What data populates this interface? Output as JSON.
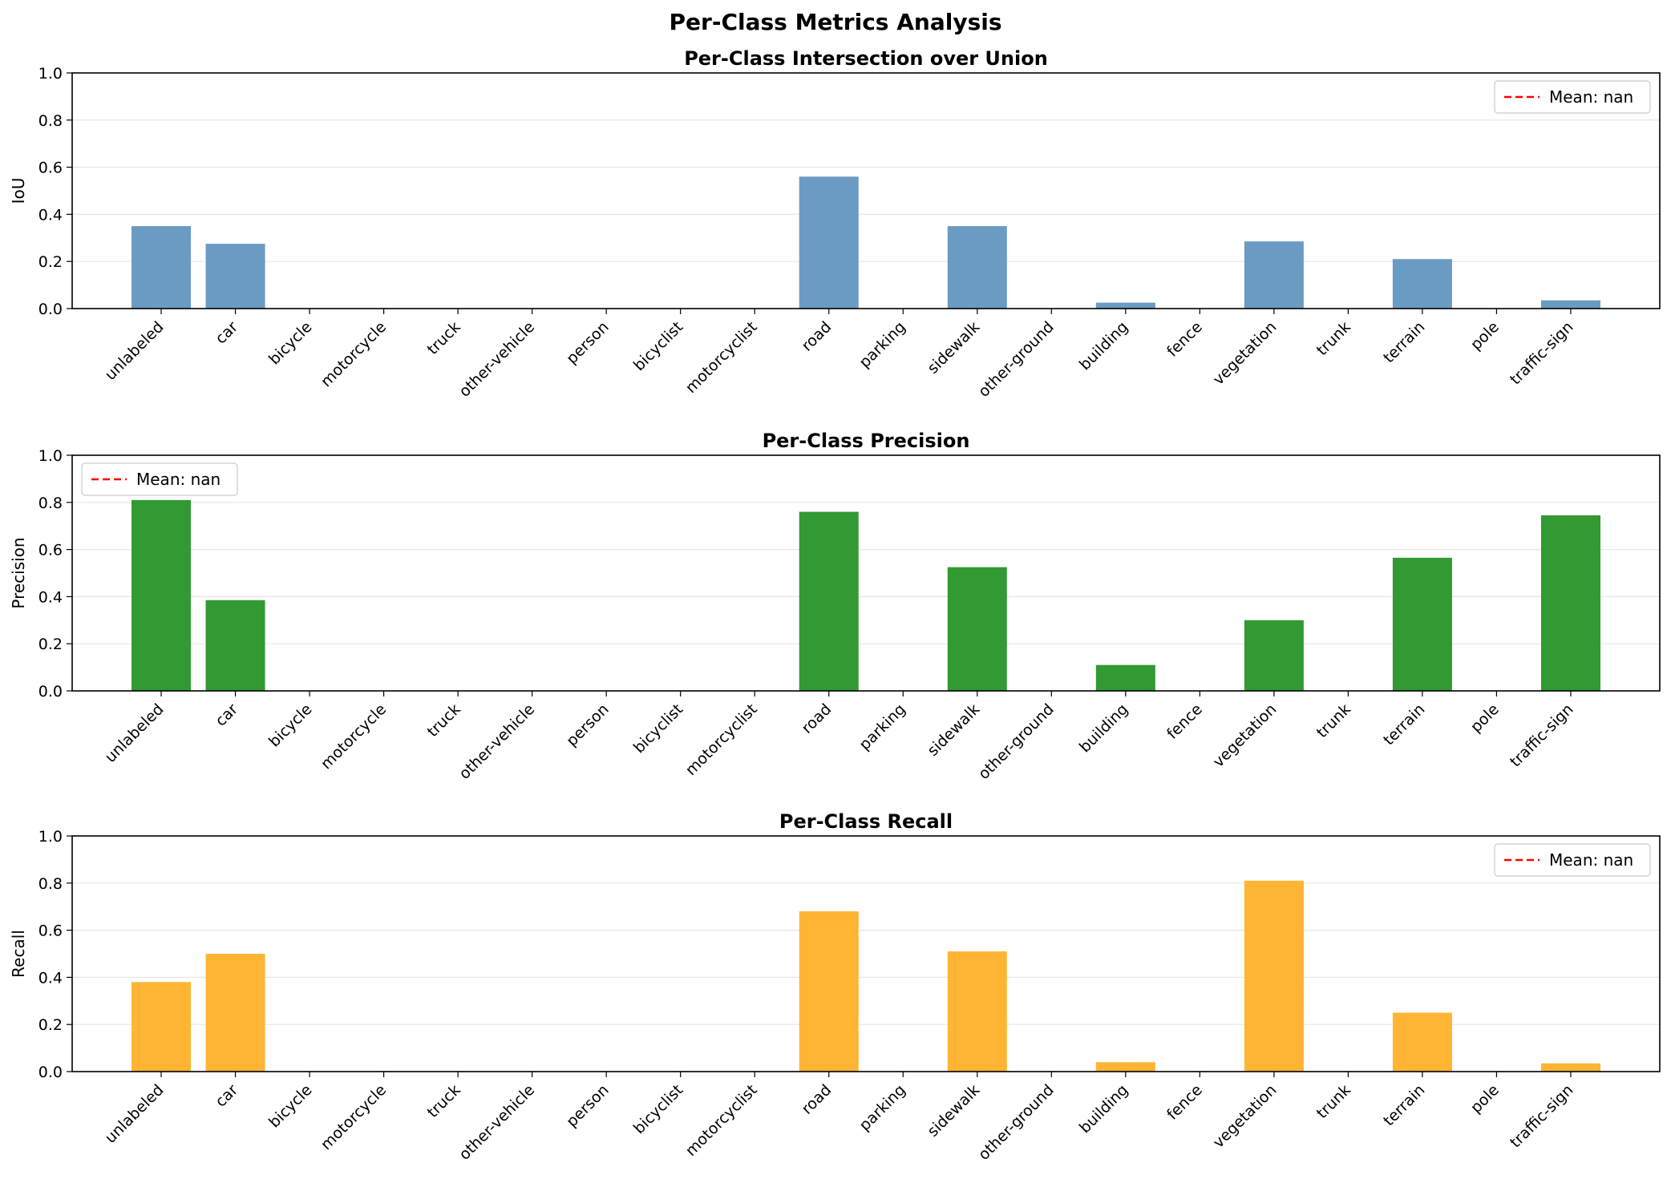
{
  "figure_title": "Per-Class Metrics Analysis",
  "chart_data": [
    {
      "type": "bar",
      "title": "Per-Class Intersection over Union",
      "ylabel": "IoU",
      "xlabel": "",
      "ylim": [
        0,
        1.0
      ],
      "yticks": [
        "0.0",
        "0.2",
        "0.4",
        "0.6",
        "0.8",
        "1.0"
      ],
      "grid": "y",
      "color": "#6a9bc3",
      "legend": {
        "label": "Mean: nan",
        "placement": "top-right",
        "line_color": "#ff0000",
        "line_style": "dashed"
      },
      "categories": [
        "unlabeled",
        "car",
        "bicycle",
        "motorcycle",
        "truck",
        "other-vehicle",
        "person",
        "bicyclist",
        "motorcyclist",
        "road",
        "parking",
        "sidewalk",
        "other-ground",
        "building",
        "fence",
        "vegetation",
        "trunk",
        "terrain",
        "pole",
        "traffic-sign"
      ],
      "values": [
        0.35,
        0.275,
        0,
        0,
        0,
        0,
        0,
        0,
        0,
        0.56,
        0,
        0.35,
        0,
        0.025,
        0,
        0.285,
        0,
        0.21,
        0,
        0.035
      ]
    },
    {
      "type": "bar",
      "title": "Per-Class Precision",
      "ylabel": "Precision",
      "xlabel": "",
      "ylim": [
        0,
        1.0
      ],
      "yticks": [
        "0.0",
        "0.2",
        "0.4",
        "0.6",
        "0.8",
        "1.0"
      ],
      "grid": "y",
      "color": "#339933",
      "legend": {
        "label": "Mean: nan",
        "placement": "top-left",
        "line_color": "#ff0000",
        "line_style": "dashed"
      },
      "categories": [
        "unlabeled",
        "car",
        "bicycle",
        "motorcycle",
        "truck",
        "other-vehicle",
        "person",
        "bicyclist",
        "motorcyclist",
        "road",
        "parking",
        "sidewalk",
        "other-ground",
        "building",
        "fence",
        "vegetation",
        "trunk",
        "terrain",
        "pole",
        "traffic-sign"
      ],
      "values": [
        0.81,
        0.385,
        0,
        0,
        0,
        0,
        0,
        0,
        0,
        0.76,
        0,
        0.525,
        0,
        0.11,
        0,
        0.3,
        0,
        0.565,
        0,
        0.745
      ]
    },
    {
      "type": "bar",
      "title": "Per-Class Recall",
      "ylabel": "Recall",
      "xlabel": "",
      "ylim": [
        0,
        1.0
      ],
      "yticks": [
        "0.0",
        "0.2",
        "0.4",
        "0.6",
        "0.8",
        "1.0"
      ],
      "grid": "y",
      "color": "#ffb533",
      "legend": {
        "label": "Mean: nan",
        "placement": "top-right",
        "line_color": "#ff0000",
        "line_style": "dashed"
      },
      "categories": [
        "unlabeled",
        "car",
        "bicycle",
        "motorcycle",
        "truck",
        "other-vehicle",
        "person",
        "bicyclist",
        "motorcyclist",
        "road",
        "parking",
        "sidewalk",
        "other-ground",
        "building",
        "fence",
        "vegetation",
        "trunk",
        "terrain",
        "pole",
        "traffic-sign"
      ],
      "values": [
        0.38,
        0.5,
        0,
        0,
        0,
        0,
        0,
        0,
        0,
        0.68,
        0,
        0.51,
        0,
        0.04,
        0,
        0.81,
        0,
        0.25,
        0,
        0.035
      ]
    }
  ]
}
